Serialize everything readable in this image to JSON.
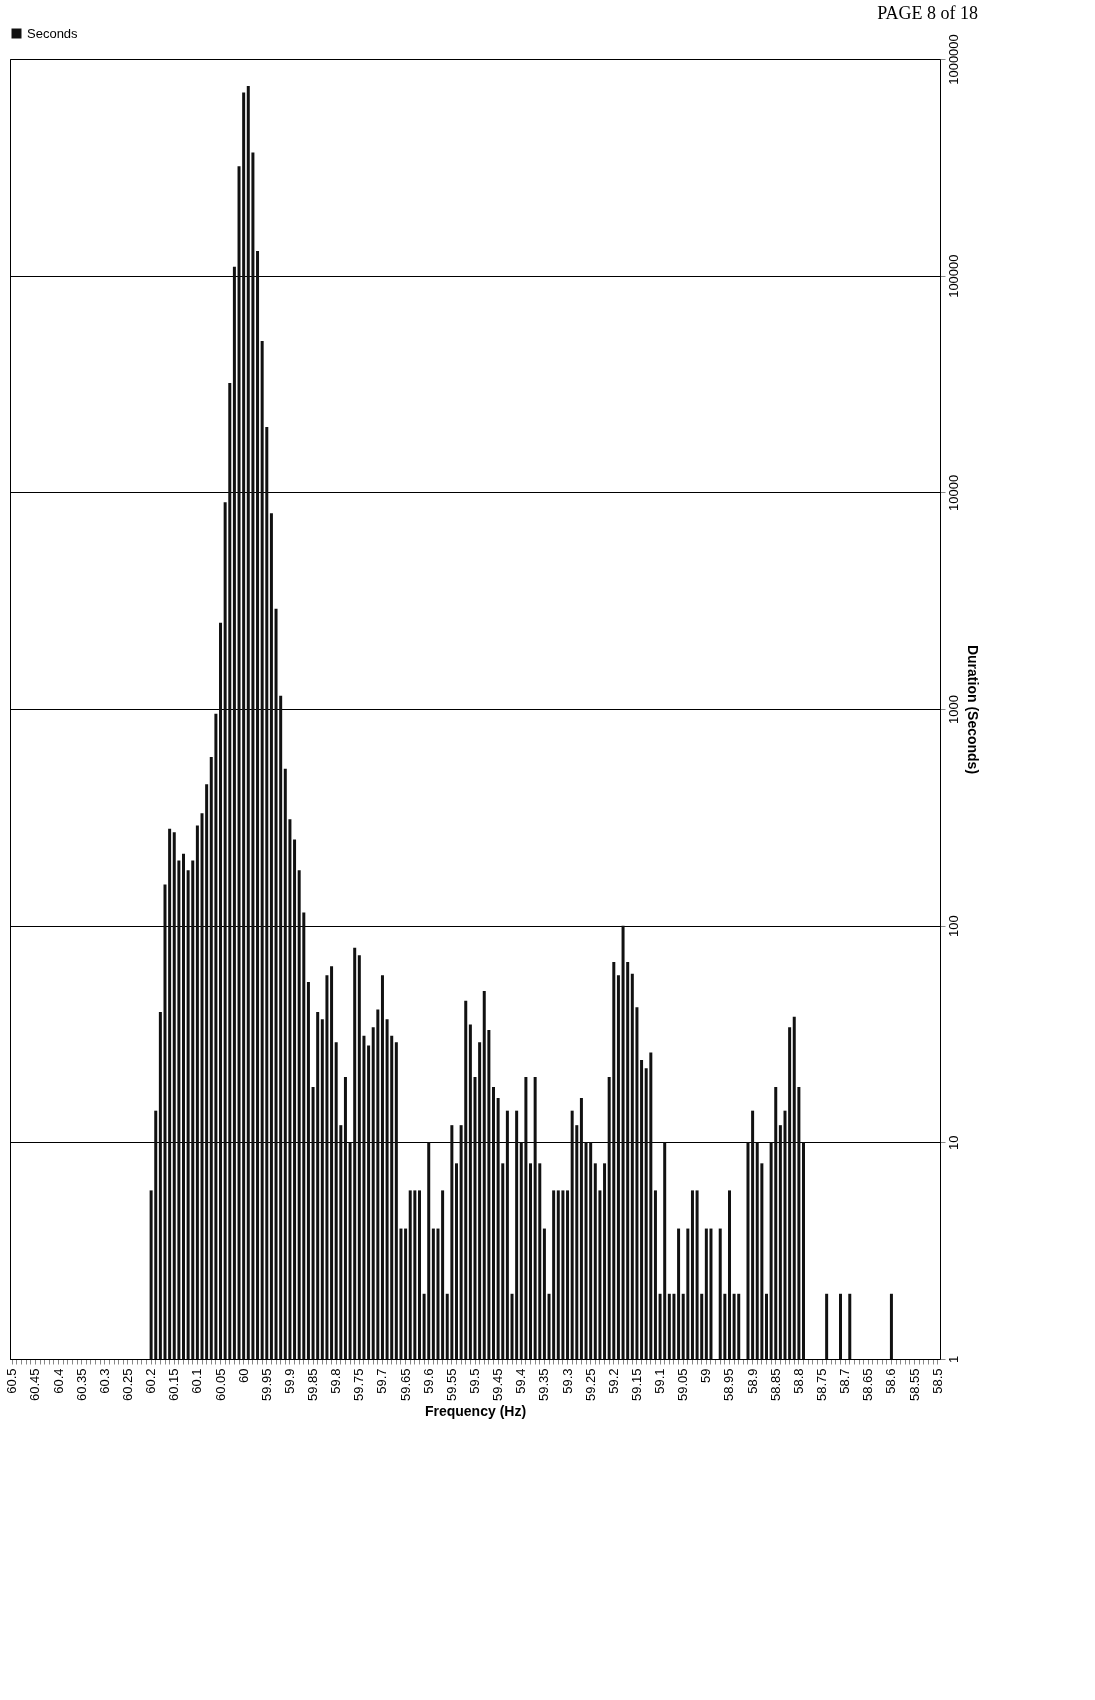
{
  "chart_data": {
    "type": "bar",
    "categories": [
      "60.5",
      null,
      null,
      null,
      null,
      "60.45",
      null,
      null,
      null,
      null,
      "60.4",
      null,
      null,
      null,
      null,
      "60.35",
      null,
      null,
      null,
      null,
      "60.3",
      null,
      null,
      null,
      null,
      "60.25",
      null,
      null,
      null,
      null,
      "60.2",
      null,
      null,
      null,
      null,
      "60.15",
      null,
      null,
      null,
      null,
      "60.1",
      null,
      null,
      null,
      null,
      "60.05",
      null,
      null,
      null,
      null,
      "60",
      null,
      null,
      null,
      null,
      "59.95",
      null,
      null,
      null,
      null,
      "59.9",
      null,
      null,
      null,
      null,
      "59.85",
      null,
      null,
      null,
      null,
      "59.8",
      null,
      null,
      null,
      null,
      "59.75",
      null,
      null,
      null,
      null,
      "59.7",
      null,
      null,
      null,
      null,
      "59.65",
      null,
      null,
      null,
      null,
      "59.6",
      null,
      null,
      null,
      null,
      "59.55",
      null,
      null,
      null,
      null,
      "59.5",
      null,
      null,
      null,
      null,
      "59.45",
      null,
      null,
      null,
      null,
      "59.4",
      null,
      null,
      null,
      null,
      "59.35",
      null,
      null,
      null,
      null,
      "59.3",
      null,
      null,
      null,
      null,
      "59.25",
      null,
      null,
      null,
      null,
      "59.2",
      null,
      null,
      null,
      null,
      "59.15",
      null,
      null,
      null,
      null,
      "59.1",
      null,
      null,
      null,
      null,
      "59.05",
      null,
      null,
      null,
      null,
      "59",
      null,
      null,
      null,
      null,
      "58.95",
      null,
      null,
      null,
      null,
      "58.9",
      null,
      null,
      null,
      null,
      "58.85",
      null,
      null,
      null,
      null,
      "58.8",
      null,
      null,
      null,
      null,
      "58.75",
      null,
      null,
      null,
      null,
      "58.7",
      null,
      null,
      null,
      null,
      "58.65",
      null,
      null,
      null,
      null,
      "58.6",
      null,
      null,
      null,
      null,
      "58.55",
      null,
      null,
      null,
      null,
      "58.5"
    ],
    "series": [
      {
        "name": "Seconds",
        "color": "#111111",
        "values": [
          null,
          null,
          null,
          null,
          null,
          null,
          null,
          null,
          null,
          null,
          null,
          null,
          null,
          null,
          null,
          null,
          null,
          null,
          null,
          null,
          null,
          null,
          null,
          null,
          null,
          null,
          null,
          null,
          null,
          null,
          6,
          14,
          40,
          155,
          280,
          270,
          200,
          215,
          180,
          200,
          290,
          330,
          450,
          600,
          950,
          2500,
          9000,
          32000,
          110000,
          320000,
          700000,
          750000,
          370000,
          130000,
          50000,
          20000,
          8000,
          2900,
          1150,
          530,
          310,
          250,
          180,
          115,
          55,
          18,
          40,
          37,
          59,
          65,
          29,
          12,
          20,
          10,
          79,
          73,
          31,
          28,
          34,
          41,
          59,
          37,
          31,
          29,
          4,
          4,
          6,
          6,
          6,
          2,
          10,
          4,
          4,
          6,
          2,
          12,
          8,
          12,
          45,
          35,
          20,
          29,
          50,
          33,
          18,
          16,
          8,
          14,
          2,
          14,
          10,
          20,
          8,
          20,
          8,
          4,
          2,
          6,
          6,
          6,
          6,
          14,
          12,
          16,
          10,
          10,
          8,
          6,
          8,
          20,
          68,
          59,
          100,
          68,
          60,
          42,
          24,
          22,
          26,
          6,
          2,
          10,
          2,
          2,
          4,
          2,
          4,
          6,
          6,
          2,
          4,
          4,
          null,
          4,
          2,
          6,
          2,
          2,
          null,
          10,
          14,
          10,
          8,
          2,
          10,
          18,
          12,
          14,
          34,
          38,
          18,
          10,
          null,
          null,
          null,
          null,
          2,
          null,
          null,
          2,
          null,
          2,
          null,
          null,
          null,
          null,
          null,
          null,
          null,
          null,
          2,
          null,
          null,
          null,
          null,
          null,
          null,
          null,
          null,
          null,
          null
        ]
      }
    ],
    "xlabel": "Frequency (Hz)",
    "ylabel": "Duration (Seconds)",
    "log": true,
    "ylim": [
      1,
      1000000
    ],
    "yticks": [
      1,
      10,
      100,
      1000,
      10000,
      100000,
      1000000
    ],
    "grid": "y",
    "legend": "top",
    "annotations": [
      "PAGE 8 of 18"
    ]
  }
}
